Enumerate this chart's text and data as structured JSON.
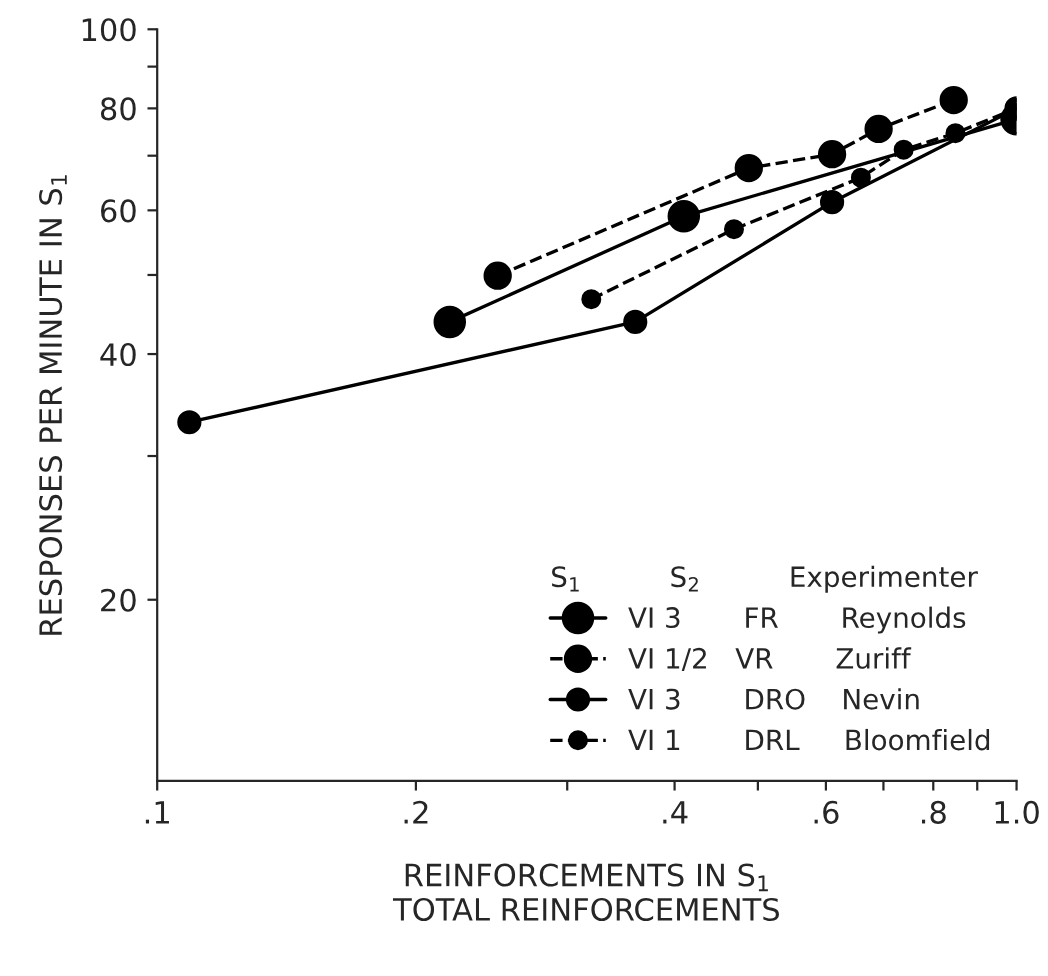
{
  "chart_data": {
    "type": "line",
    "xlabel": "REINFORCEMENTS IN S$_{1}$\nTOTAL REINFORCEMENTS",
    "ylabel": "RESPONSES PER MINUTE IN S$_{1}$",
    "legend_title": "S$_{1}$          S$_{2}$          Experimenter",
    "log": "xy",
    "grid": false,
    "legend": "bottom right",
    "marker": "circle",
    "xlim": [
      0.1,
      1.0
    ],
    "xticks": [
      {
        "value": 0.1,
        "label": ".1"
      },
      {
        "value": 0.2,
        "label": ".2"
      },
      {
        "value": 0.3,
        "label": null
      },
      {
        "value": 0.4,
        "label": ".4"
      },
      {
        "value": 0.5,
        "label": null
      },
      {
        "value": 0.6,
        "label": ".6"
      },
      {
        "value": 0.7,
        "label": null
      },
      {
        "value": 0.8,
        "label": ".8"
      },
      {
        "value": 0.9,
        "label": null
      },
      {
        "value": 1.0,
        "label": "1.0"
      }
    ],
    "ylim": [
      12,
      100
    ],
    "yticks": [
      20,
      {
        "value": 30,
        "label": null
      },
      40,
      {
        "value": 50,
        "label": null
      },
      60,
      {
        "value": 70,
        "label": null
      },
      80,
      {
        "value": 90,
        "label": null
      },
      100
    ],
    "series": [
      {
        "name": "VI 3       FR       Reynolds",
        "color": "#000000",
        "line_style": "solid",
        "x": [
          0.219,
          0.41,
          1.0
        ],
        "values": [
          43.8,
          59.0,
          77.6
        ]
      },
      {
        "name": "VI 1/2   VR       Zuriff",
        "color": "#000000",
        "line_style": "dashed",
        "x": [
          0.249,
          0.488,
          0.61,
          0.691,
          0.845
        ],
        "values": [
          49.9,
          67.6,
          70.3,
          75.5,
          81.9
        ]
      },
      {
        "name": "VI 3       DRO    Nevin",
        "color": "#000000",
        "line_style": "solid",
        "x": [
          0.109,
          0.36,
          0.61,
          1.0
        ],
        "values": [
          33.0,
          43.8,
          61.4,
          80.0
        ]
      },
      {
        "name": "VI 1       DRL     Bloomfield",
        "color": "#000000",
        "line_style": "dashed",
        "x": [
          0.32,
          0.469,
          0.659,
          0.739,
          0.849,
          1.0
        ],
        "values": [
          46.7,
          56.9,
          65.8,
          71.2,
          74.6,
          80.0
        ]
      }
    ]
  }
}
